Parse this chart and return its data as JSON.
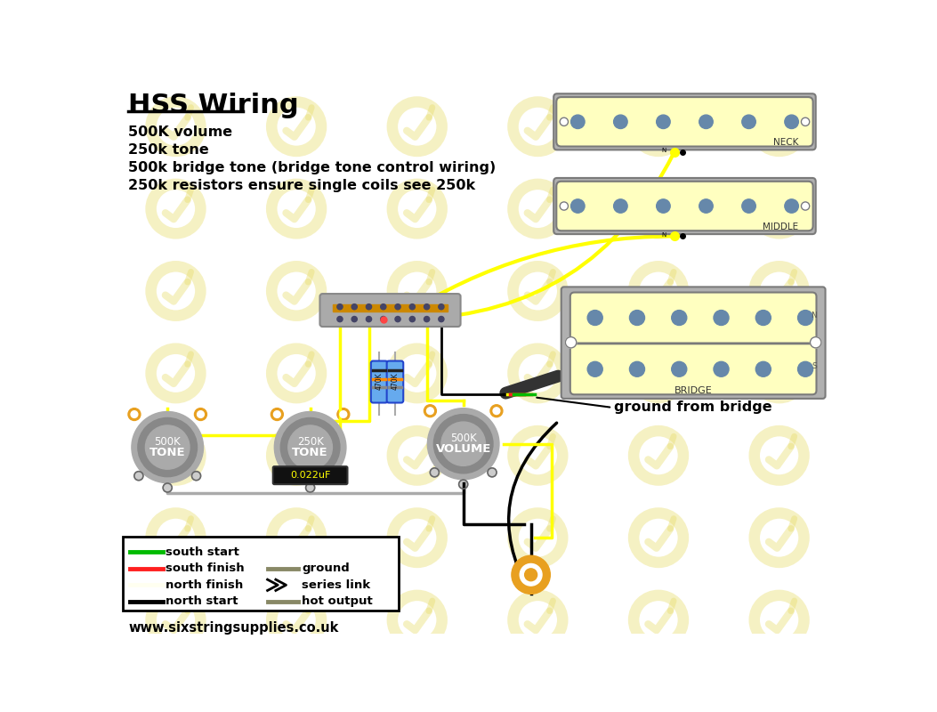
{
  "title": "HSS Wiring",
  "bg_color": "#ffffff",
  "wm_color": "#e8dc6a",
  "info_lines": [
    "500K volume",
    "250k tone",
    "500k bridge tone (bridge tone control wiring)",
    "250k resistors ensure single coils see 250k"
  ],
  "website": "www.sixstringsupplies.co.uk",
  "cream": "#ffffc0",
  "gray_base": "#b0b0b0",
  "gray_dark": "#7a7a7a",
  "gray_light": "#c8c8c8",
  "pole": "#6688aa",
  "yellow": "#ffff00",
  "black": "#000000",
  "gray_wire": "#aaaaaa",
  "red_wire": "#ff2020",
  "green_wire": "#00bb00",
  "pot_outer": "#aaaaaa",
  "pot_mid": "#888888",
  "pot_inner": "#aaaaaa",
  "orange_tab": "#e8a020",
  "blue_res": "#66aaee",
  "hot_wire": "#888866",
  "jack_orange": "#e8a020",
  "sw_gray": "#aaaaaa",
  "sw_dark": "#888888"
}
